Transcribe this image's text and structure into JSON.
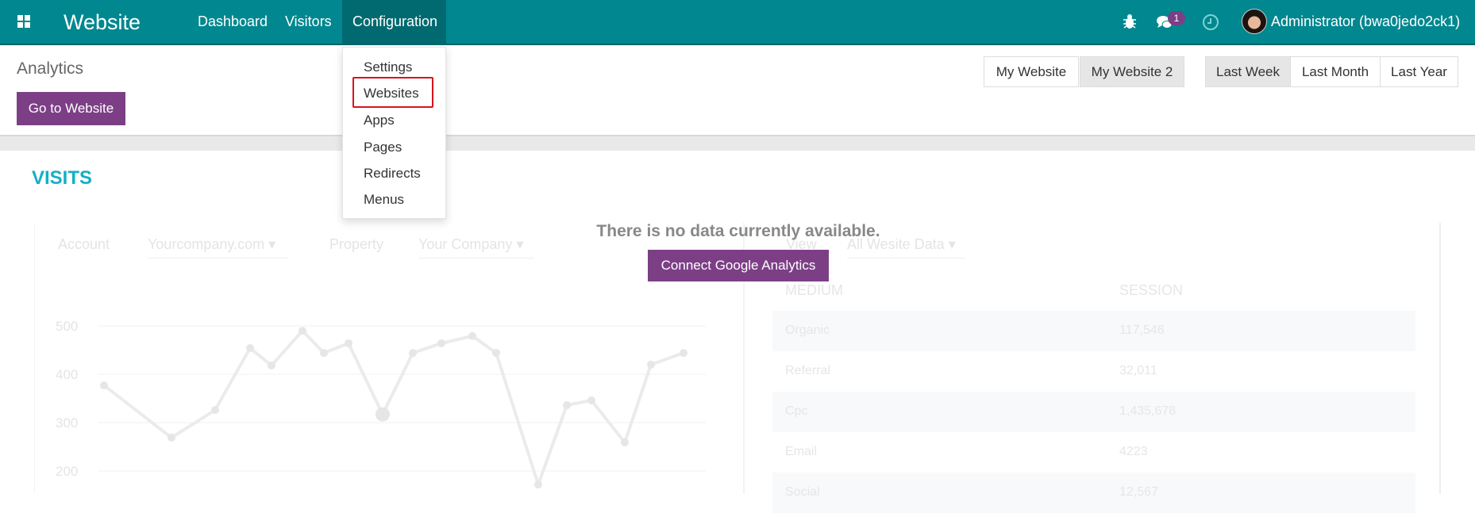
{
  "navbar": {
    "brand": "Website",
    "menu": [
      "Dashboard",
      "Visitors",
      "Configuration"
    ],
    "notification_count": "1",
    "user": "Administrator (bwa0jedo2ck1)",
    "icons": [
      "apps-icon",
      "bug-icon",
      "chat-icon",
      "clock-icon"
    ],
    "color": "#00878f"
  },
  "dropdown": {
    "items": [
      "Settings",
      "Websites",
      "Apps",
      "Pages",
      "Redirects",
      "Menus"
    ],
    "highlighted": "Websites",
    "highlight_color": "#d8141b"
  },
  "header": {
    "title": "Analytics",
    "go_to_website": "Go to Website",
    "websites": [
      "My Website",
      "My Website 2"
    ],
    "selected_website": "My Website 2",
    "periods": [
      "Last Week",
      "Last Month",
      "Last Year"
    ],
    "selected_period": "Last Week"
  },
  "visits": {
    "title": "VISITS",
    "no_data": "There is no data currently available.",
    "connect": "Connect Google Analytics",
    "filters": {
      "account_label": "Account",
      "account_value": "Yourcompany.com",
      "property_label": "Property",
      "property_value": "Your Company",
      "view_label": "View",
      "view_value": "All Wesite Data"
    },
    "table": {
      "headers": [
        "MEDIUM",
        "SESSION"
      ],
      "rows": [
        [
          "Organic",
          "117,546"
        ],
        [
          "Referral",
          "32,011"
        ],
        [
          "Cpc",
          "1,435,678"
        ],
        [
          "Email",
          "4223"
        ],
        [
          "Social",
          "12,567"
        ]
      ]
    }
  },
  "chart_data": {
    "type": "line",
    "yticks": [
      "500",
      "400",
      "300",
      "200"
    ],
    "ylim": [
      150,
      520
    ],
    "grid": true,
    "values": [
      377,
      269,
      326,
      454,
      418,
      490,
      444,
      464,
      317,
      444,
      464,
      479,
      444,
      172,
      336,
      346,
      259,
      420,
      444
    ]
  }
}
